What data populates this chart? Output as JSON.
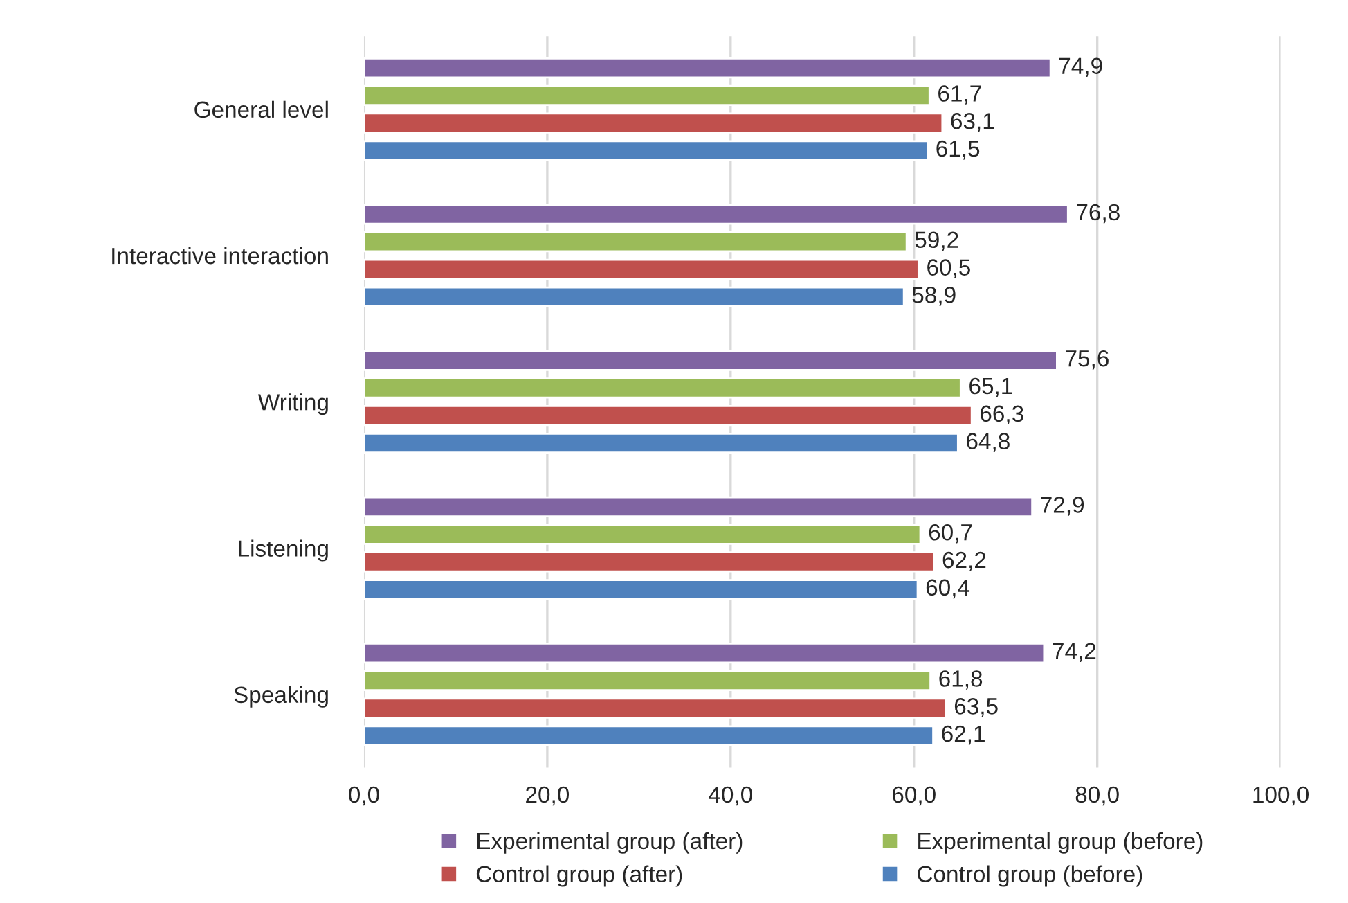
{
  "chart_data": {
    "type": "bar",
    "orientation": "horizontal",
    "categories": [
      "General level",
      "Interactive interaction",
      "Writing",
      "Listening",
      "Speaking"
    ],
    "series": [
      {
        "name": "Experimental group (after)",
        "color": "#8064a2",
        "values": [
          74.9,
          76.8,
          75.6,
          72.9,
          74.2
        ],
        "value_labels": [
          "74,9",
          "76,8",
          "75,6",
          "72,9",
          "74,2"
        ]
      },
      {
        "name": "Experimental group (before)",
        "color": "#9bbb59",
        "values": [
          61.7,
          59.2,
          65.1,
          60.7,
          61.8
        ],
        "value_labels": [
          "61,7",
          "59,2",
          "65,1",
          "60,7",
          "61,8"
        ]
      },
      {
        "name": "Control group (after)",
        "color": "#c0504d",
        "values": [
          63.1,
          60.5,
          66.3,
          62.2,
          63.5
        ],
        "value_labels": [
          "63,1",
          "60,5",
          "66,3",
          "62,2",
          "63,5"
        ]
      },
      {
        "name": "Control group (before)",
        "color": "#4f81bd",
        "values": [
          61.5,
          58.9,
          64.8,
          60.4,
          62.1
        ],
        "value_labels": [
          "61,5",
          "58,9",
          "64,8",
          "60,4",
          "62,1"
        ]
      }
    ],
    "xlim": [
      0,
      100
    ],
    "xticks": [
      {
        "value": 0,
        "label": "0,0"
      },
      {
        "value": 20,
        "label": "20,0"
      },
      {
        "value": 40,
        "label": "40,0"
      },
      {
        "value": 60,
        "label": "60,0"
      },
      {
        "value": 80,
        "label": "80,0"
      },
      {
        "value": 100,
        "label": "100,0"
      }
    ],
    "grid": "x",
    "legend": "bottom"
  }
}
